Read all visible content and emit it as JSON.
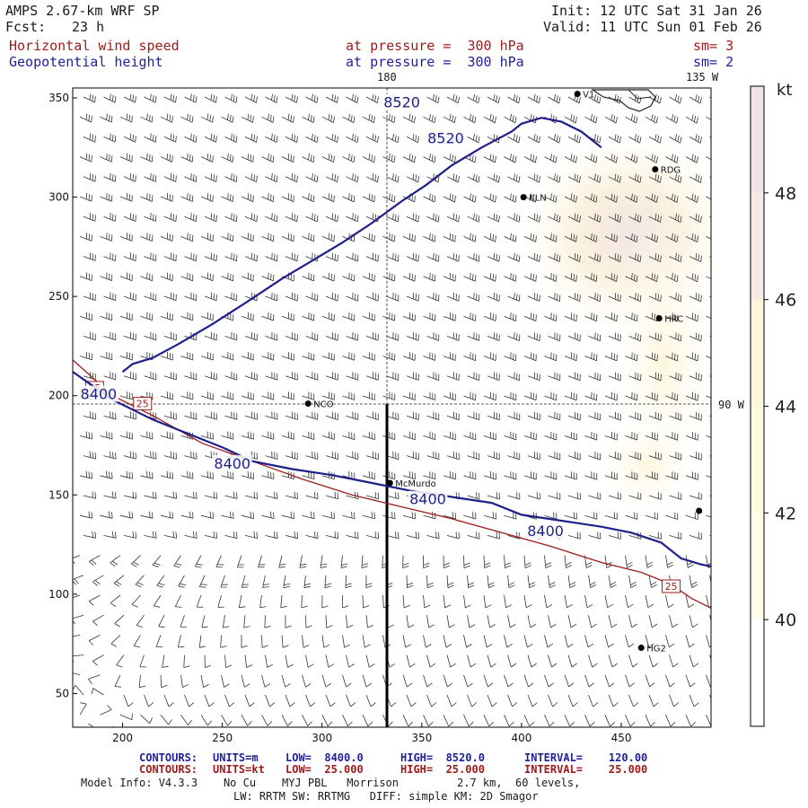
{
  "header": {
    "model": "AMPS 2.67-km WRF SP",
    "init": "Init: 12 UTC Sat 31 Jan 26",
    "fcst_label": "Fcst:",
    "fcst_hours": "23 h",
    "valid": "Valid: 11 UTC Sun 01 Feb 26",
    "field1": "Horizontal wind speed",
    "field1_level": "at pressure =  300 hPa",
    "field1_sm": "sm= 3",
    "field2": "Geopotential height",
    "field2_level": "at pressure =  300 hPa",
    "field2_sm": "sm= 2"
  },
  "map_labels": {
    "lon_180": "180",
    "lon_135w": "135 W",
    "lon_90w": "90 W"
  },
  "stations": [
    {
      "id": "V1",
      "label": "V1",
      "x": 428,
      "y": 352
    },
    {
      "id": "RDG",
      "label": "RDG",
      "x": 467,
      "y": 314
    },
    {
      "id": "KLN",
      "label": "KLN",
      "x": 401,
      "y": 300
    },
    {
      "id": "HRC",
      "label": "HRC",
      "x": 469,
      "y": 239
    },
    {
      "id": "NCO",
      "label": "NCO",
      "x": 293,
      "y": 196
    },
    {
      "id": "MCM",
      "label": "McMurdo",
      "x": 334,
      "y": 156
    },
    {
      "id": "E",
      "label": "",
      "x": 489,
      "y": 142
    },
    {
      "id": "HG2",
      "label": "HG2",
      "x": 460,
      "y": 73
    }
  ],
  "colorbar": {
    "unit": "kt",
    "ticks": [
      "48",
      "46",
      "44",
      "42",
      "40"
    ],
    "colors": [
      "#f1e4e6",
      "#f5ebe4",
      "#fdf6dc",
      "#fdf9df",
      "#fffde8",
      "#ffffff"
    ]
  },
  "footer": {
    "row1": {
      "label": "CONTOURS:",
      "units": "UNITS=m",
      "low": "LOW=  8400.0",
      "high": "HIGH=  8520.0",
      "interval": "INTERVAL=    120.00"
    },
    "row2": {
      "label": "CONTOURS:",
      "units": "UNITS=kt",
      "low": "LOW=  25.000",
      "high": "HIGH=  25.000",
      "interval": "INTERVAL=    25.000"
    },
    "model_info": "Model Info: V4.3.3    No Cu    MYJ PBL   Morrison         2.7 km,  60 levels,",
    "model_info2": "LW: RRTM SW: RRTMG   DIFF: simple KM: 2D Smagor"
  },
  "chart_data": {
    "type": "map",
    "xlim": [
      175,
      495
    ],
    "ylim": [
      33,
      355
    ],
    "x_ticks": [
      200,
      250,
      300,
      350,
      400,
      450
    ],
    "y_ticks": [
      50,
      100,
      150,
      200,
      250,
      300,
      350
    ],
    "height_contours": [
      {
        "value": 8400,
        "label": "8400",
        "points": [
          [
            175,
            212
          ],
          [
            195,
            198
          ],
          [
            215,
            188
          ],
          [
            235,
            180
          ],
          [
            250,
            174
          ],
          [
            265,
            167
          ],
          [
            285,
            163
          ],
          [
            305,
            160
          ],
          [
            325,
            156
          ],
          [
            345,
            152
          ],
          [
            365,
            149
          ],
          [
            385,
            146
          ],
          [
            400,
            140
          ],
          [
            420,
            137
          ],
          [
            440,
            134
          ],
          [
            455,
            131
          ],
          [
            470,
            126
          ],
          [
            480,
            118
          ],
          [
            490,
            115
          ],
          [
            495,
            114
          ]
        ],
        "labels": [
          [
            188,
            201
          ],
          [
            255,
            166
          ],
          [
            353,
            148
          ],
          [
            412,
            132
          ]
        ]
      },
      {
        "value": 8520,
        "label": "8520",
        "points": [
          [
            440,
            325
          ],
          [
            430,
            333
          ],
          [
            420,
            338
          ],
          [
            410,
            340
          ],
          [
            400,
            337
          ],
          [
            395,
            333
          ],
          [
            380,
            325
          ],
          [
            365,
            316
          ],
          [
            352,
            306
          ],
          [
            340,
            298
          ],
          [
            325,
            287
          ],
          [
            310,
            277
          ],
          [
            295,
            268
          ],
          [
            280,
            259
          ],
          [
            262,
            247
          ],
          [
            245,
            236
          ],
          [
            228,
            226
          ],
          [
            215,
            219
          ],
          [
            205,
            216
          ],
          [
            200,
            212
          ]
        ],
        "labels": [
          [
            340,
            348
          ],
          [
            362,
            330
          ]
        ]
      }
    ],
    "wind_contours": [
      {
        "value": 25,
        "label": "25",
        "points": [
          [
            175,
            218
          ],
          [
            195,
            200
          ],
          [
            215,
            190
          ],
          [
            240,
            176
          ],
          [
            265,
            167
          ],
          [
            290,
            158
          ],
          [
            315,
            150
          ],
          [
            340,
            144
          ],
          [
            365,
            138
          ],
          [
            390,
            131
          ],
          [
            415,
            124
          ],
          [
            440,
            116
          ],
          [
            460,
            111
          ],
          [
            475,
            105
          ],
          [
            485,
            98
          ],
          [
            495,
            93
          ]
        ],
        "labels": [
          [
            186,
            204
          ],
          [
            210,
            196
          ],
          [
            475,
            104
          ]
        ]
      }
    ]
  }
}
